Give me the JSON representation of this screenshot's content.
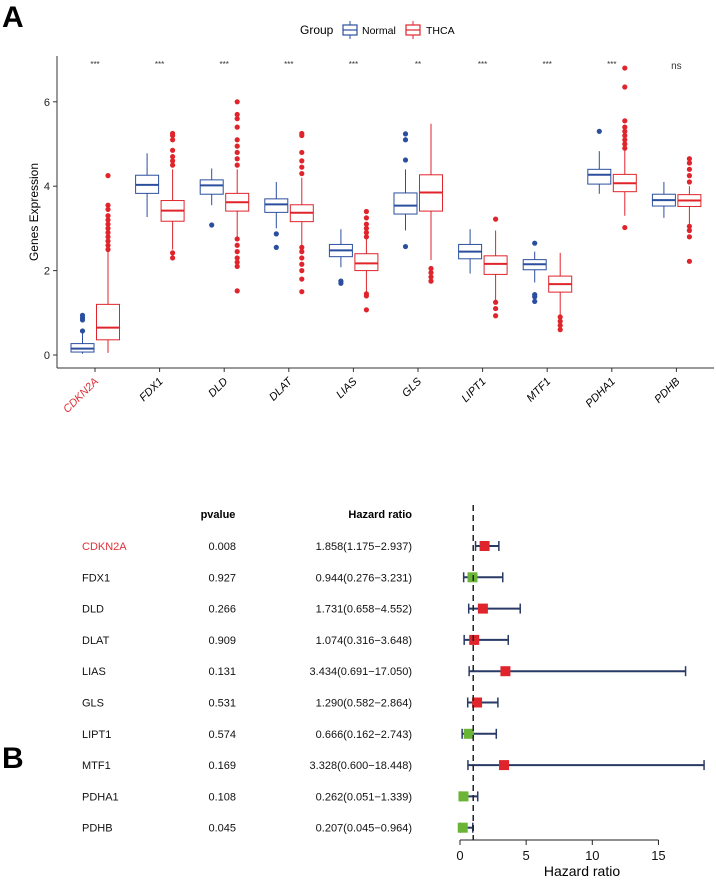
{
  "chart_data": [
    {
      "panel_label": "A",
      "type": "boxplot",
      "ylabel": "Genes Expression",
      "ylim": [
        -0.3,
        7.1
      ],
      "yticks": [
        0,
        2,
        4,
        6
      ],
      "legend": {
        "title": "Group",
        "entries": [
          "Normal",
          "THCA"
        ],
        "placement": "top"
      },
      "colors": {
        "Normal": "#2b4f9e",
        "THCA": "#e0242b",
        "highlight_label": "#e0303a"
      },
      "categories": [
        "CDKN2A",
        "FDX1",
        "DLD",
        "DLAT",
        "LIAS",
        "GLS",
        "LIPT1",
        "MTF1",
        "PDHA1",
        "PDHB"
      ],
      "highlight_category": "CDKN2A",
      "significance": [
        "***",
        "***",
        "***",
        "***",
        "***",
        "**",
        "***",
        "***",
        "***",
        "ns"
      ],
      "series": [
        {
          "name": "Normal",
          "boxes": [
            {
              "low": 0.03,
              "q1": 0.07,
              "median": 0.15,
              "q3": 0.27,
              "high": 0.55,
              "outliers": [
                0.57,
                0.83,
                0.88,
                0.94
              ]
            },
            {
              "low": 3.27,
              "q1": 3.83,
              "median": 4.03,
              "q3": 4.26,
              "high": 4.78,
              "outliers": []
            },
            {
              "low": 3.55,
              "q1": 3.81,
              "median": 4.02,
              "q3": 4.15,
              "high": 4.42,
              "outliers": [
                3.08
              ]
            },
            {
              "low": 3.0,
              "q1": 3.38,
              "median": 3.57,
              "q3": 3.7,
              "high": 4.1,
              "outliers": [
                2.55,
                2.87
              ]
            },
            {
              "low": 2.08,
              "q1": 2.33,
              "median": 2.48,
              "q3": 2.62,
              "high": 2.98,
              "outliers": [
                1.7,
                1.75
              ]
            },
            {
              "low": 2.95,
              "q1": 3.34,
              "median": 3.54,
              "q3": 3.84,
              "high": 4.4,
              "outliers": [
                2.57,
                4.62,
                5.1,
                5.24
              ]
            },
            {
              "low": 1.93,
              "q1": 2.28,
              "median": 2.45,
              "q3": 2.62,
              "high": 2.98,
              "outliers": []
            },
            {
              "low": 1.72,
              "q1": 2.02,
              "median": 2.15,
              "q3": 2.26,
              "high": 2.45,
              "outliers": [
                1.27,
                1.38,
                1.43,
                2.65
              ]
            },
            {
              "low": 3.82,
              "q1": 4.05,
              "median": 4.27,
              "q3": 4.4,
              "high": 4.83,
              "outliers": [
                5.3
              ]
            },
            {
              "low": 3.25,
              "q1": 3.53,
              "median": 3.67,
              "q3": 3.81,
              "high": 4.1,
              "outliers": []
            }
          ]
        },
        {
          "name": "THCA",
          "boxes": [
            {
              "low": 0.05,
              "q1": 0.36,
              "median": 0.65,
              "q3": 1.2,
              "high": 2.44,
              "outliers": [
                2.5,
                2.6,
                2.7,
                2.8,
                2.9,
                3.0,
                3.1,
                3.2,
                3.3,
                3.45,
                3.55,
                4.25
              ]
            },
            {
              "low": 2.5,
              "q1": 3.17,
              "median": 3.42,
              "q3": 3.66,
              "high": 4.4,
              "outliers": [
                2.3,
                2.42,
                4.5,
                4.6,
                4.7,
                4.85,
                5.1,
                5.2,
                5.25
              ]
            },
            {
              "low": 2.8,
              "q1": 3.41,
              "median": 3.62,
              "q3": 3.83,
              "high": 4.4,
              "outliers": [
                1.52,
                2.1,
                2.2,
                2.3,
                2.45,
                2.6,
                2.75,
                4.5,
                4.65,
                4.8,
                4.95,
                5.1,
                5.4,
                5.6,
                5.7,
                6.0
              ]
            },
            {
              "low": 2.6,
              "q1": 3.16,
              "median": 3.37,
              "q3": 3.56,
              "high": 4.2,
              "outliers": [
                1.5,
                1.8,
                2.0,
                2.15,
                2.3,
                2.45,
                2.55,
                4.3,
                4.45,
                4.6,
                4.8,
                5.2,
                5.25
              ]
            },
            {
              "low": 1.5,
              "q1": 2.0,
              "median": 2.17,
              "q3": 2.4,
              "high": 2.75,
              "outliers": [
                1.07,
                1.4,
                1.45,
                2.8,
                2.9,
                3.0,
                3.1,
                3.25,
                3.4
              ]
            },
            {
              "low": 2.25,
              "q1": 3.41,
              "median": 3.85,
              "q3": 4.27,
              "high": 5.48,
              "outliers": [
                1.75,
                1.85,
                1.95,
                2.05
              ]
            },
            {
              "low": 1.3,
              "q1": 1.91,
              "median": 2.16,
              "q3": 2.35,
              "high": 2.95,
              "outliers": [
                0.93,
                1.1,
                1.25,
                3.22
              ]
            },
            {
              "low": 0.95,
              "q1": 1.49,
              "median": 1.68,
              "q3": 1.87,
              "high": 2.42,
              "outliers": [
                0.6,
                0.7,
                0.8,
                0.9
              ]
            },
            {
              "low": 3.3,
              "q1": 3.87,
              "median": 4.07,
              "q3": 4.28,
              "high": 4.85,
              "outliers": [
                3.02,
                4.9,
                5.0,
                5.1,
                5.2,
                5.3,
                5.4,
                5.55,
                6.35,
                6.8
              ]
            },
            {
              "low": 3.1,
              "q1": 3.52,
              "median": 3.66,
              "q3": 3.8,
              "high": 4.0,
              "outliers": [
                2.22,
                2.8,
                2.95,
                3.05,
                4.1,
                4.25,
                4.4,
                4.55,
                4.65
              ]
            }
          ]
        }
      ]
    },
    {
      "panel_label": "B",
      "type": "forest",
      "columns": {
        "pvalue": "pvalue",
        "hr": "Hazard ratio"
      },
      "xlabel": "Hazard ratio",
      "xlim": [
        0,
        15
      ],
      "xticks": [
        0,
        5,
        10,
        15
      ],
      "reference_line": 1,
      "colors": {
        "hr_above_1": "#e0242b",
        "hr_below_1": "#6ab536",
        "ci_line": "#2a3a66"
      },
      "rows": [
        {
          "gene": "CDKN2A",
          "pvalue": "0.008",
          "hr_text": "1.858(1.175−2.937)",
          "hr": 1.858,
          "lower": 1.175,
          "upper": 2.937,
          "highlight": true
        },
        {
          "gene": "FDX1",
          "pvalue": "0.927",
          "hr_text": "0.944(0.276−3.231)",
          "hr": 0.944,
          "lower": 0.276,
          "upper": 3.231
        },
        {
          "gene": "DLD",
          "pvalue": "0.266",
          "hr_text": "1.731(0.658−4.552)",
          "hr": 1.731,
          "lower": 0.658,
          "upper": 4.552
        },
        {
          "gene": "DLAT",
          "pvalue": "0.909",
          "hr_text": "1.074(0.316−3.648)",
          "hr": 1.074,
          "lower": 0.316,
          "upper": 3.648
        },
        {
          "gene": "LIAS",
          "pvalue": "0.131",
          "hr_text": "3.434(0.691−17.050)",
          "hr": 3.434,
          "lower": 0.691,
          "upper": 17.05
        },
        {
          "gene": "GLS",
          "pvalue": "0.531",
          "hr_text": "1.290(0.582−2.864)",
          "hr": 1.29,
          "lower": 0.582,
          "upper": 2.864
        },
        {
          "gene": "LIPT1",
          "pvalue": "0.574",
          "hr_text": "0.666(0.162−2.743)",
          "hr": 0.666,
          "lower": 0.162,
          "upper": 2.743
        },
        {
          "gene": "MTF1",
          "pvalue": "0.169",
          "hr_text": "3.328(0.600−18.448)",
          "hr": 3.328,
          "lower": 0.6,
          "upper": 18.448
        },
        {
          "gene": "PDHA1",
          "pvalue": "0.108",
          "hr_text": "0.262(0.051−1.339)",
          "hr": 0.262,
          "lower": 0.051,
          "upper": 1.339
        },
        {
          "gene": "PDHB",
          "pvalue": "0.045",
          "hr_text": "0.207(0.045−0.964)",
          "hr": 0.207,
          "lower": 0.045,
          "upper": 0.964
        }
      ]
    }
  ]
}
